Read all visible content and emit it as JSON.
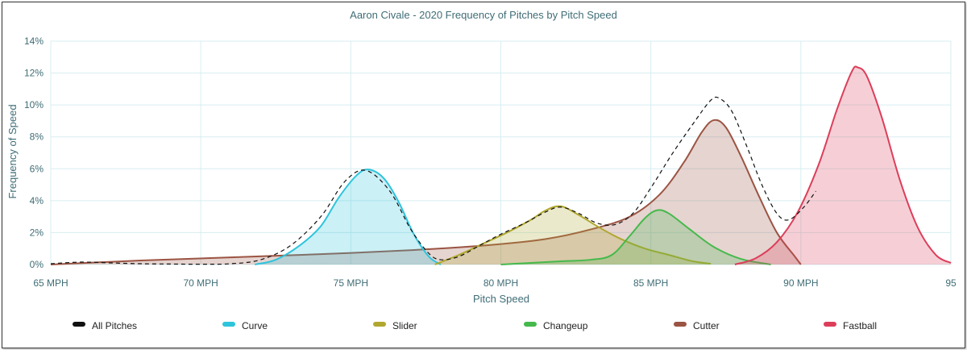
{
  "chart_data": {
    "type": "area",
    "title": "Aaron Civale - 2020 Frequency of Pitches by Pitch Speed",
    "xlabel": "Pitch Speed",
    "ylabel": "Frequency of Speed",
    "xlim": [
      65,
      95
    ],
    "ylim": [
      0,
      14
    ],
    "x_ticks": [
      {
        "value": 65,
        "label": "65 MPH"
      },
      {
        "value": 70,
        "label": "70 MPH"
      },
      {
        "value": 75,
        "label": "75 MPH"
      },
      {
        "value": 80,
        "label": "80 MPH"
      },
      {
        "value": 85,
        "label": "85 MPH"
      },
      {
        "value": 90,
        "label": "90 MPH"
      },
      {
        "value": 95,
        "label": "95"
      }
    ],
    "y_ticks": [
      {
        "value": 0,
        "label": "0%"
      },
      {
        "value": 2,
        "label": "2%"
      },
      {
        "value": 4,
        "label": "4%"
      },
      {
        "value": 6,
        "label": "6%"
      },
      {
        "value": 8,
        "label": "8%"
      },
      {
        "value": 10,
        "label": "10%"
      },
      {
        "value": 12,
        "label": "12%"
      },
      {
        "value": 14,
        "label": "14%"
      }
    ],
    "grid": true,
    "legend_position": "bottom",
    "series": [
      {
        "name": "All Pitches",
        "color": "#111111",
        "style": "dashed",
        "fill": false,
        "points": [
          [
            65,
            0.05
          ],
          [
            66,
            0.15
          ],
          [
            67,
            0.1
          ],
          [
            68,
            0.05
          ],
          [
            69,
            0.03
          ],
          [
            70,
            0.02
          ],
          [
            71,
            0.05
          ],
          [
            72,
            0.3
          ],
          [
            73,
            1.2
          ],
          [
            74,
            3.0
          ],
          [
            74.8,
            5.2
          ],
          [
            75.5,
            5.9
          ],
          [
            76.3,
            4.6
          ],
          [
            77,
            2.2
          ],
          [
            77.6,
            0.7
          ],
          [
            78,
            0.3
          ],
          [
            78.6,
            0.5
          ],
          [
            79.3,
            1.2
          ],
          [
            80,
            1.9
          ],
          [
            80.8,
            2.6
          ],
          [
            81.5,
            3.3
          ],
          [
            82,
            3.6
          ],
          [
            82.6,
            3.2
          ],
          [
            83.2,
            2.6
          ],
          [
            83.8,
            2.5
          ],
          [
            84.4,
            3.2
          ],
          [
            85.0,
            4.8
          ],
          [
            85.7,
            6.9
          ],
          [
            86.4,
            8.8
          ],
          [
            87.0,
            10.3
          ],
          [
            87.3,
            10.4
          ],
          [
            87.7,
            9.6
          ],
          [
            88.2,
            7.4
          ],
          [
            88.7,
            5.0
          ],
          [
            89.2,
            3.2
          ],
          [
            89.6,
            2.8
          ],
          [
            90.1,
            3.6
          ],
          [
            90.5,
            4.6
          ]
        ]
      },
      {
        "name": "Curve",
        "color": "#2ec4dc",
        "fill": true,
        "points": [
          [
            71.8,
            0
          ],
          [
            72.5,
            0.3
          ],
          [
            73.3,
            1.2
          ],
          [
            74,
            2.4
          ],
          [
            74.6,
            4.2
          ],
          [
            75.2,
            5.6
          ],
          [
            75.6,
            5.95
          ],
          [
            76.1,
            5.4
          ],
          [
            76.6,
            3.9
          ],
          [
            77.1,
            1.9
          ],
          [
            77.6,
            0.5
          ],
          [
            78,
            0
          ]
        ]
      },
      {
        "name": "Slider",
        "color": "#b0a72e",
        "fill": true,
        "points": [
          [
            77.8,
            0
          ],
          [
            78.6,
            0.6
          ],
          [
            79.4,
            1.3
          ],
          [
            80.2,
            2.0
          ],
          [
            81.0,
            2.8
          ],
          [
            81.5,
            3.4
          ],
          [
            82.0,
            3.65
          ],
          [
            82.6,
            3.1
          ],
          [
            83.3,
            2.3
          ],
          [
            84.0,
            1.6
          ],
          [
            84.8,
            1.0
          ],
          [
            85.6,
            0.6
          ],
          [
            86.4,
            0.2
          ],
          [
            87.0,
            0.05
          ]
        ]
      },
      {
        "name": "Changeup",
        "color": "#45b94c",
        "fill": true,
        "points": [
          [
            80,
            0
          ],
          [
            81,
            0.1
          ],
          [
            82,
            0.2
          ],
          [
            83,
            0.3
          ],
          [
            83.7,
            0.6
          ],
          [
            84.3,
            1.8
          ],
          [
            84.8,
            2.9
          ],
          [
            85.2,
            3.4
          ],
          [
            85.6,
            3.2
          ],
          [
            86.3,
            2.2
          ],
          [
            87.1,
            1.1
          ],
          [
            88,
            0.35
          ],
          [
            89,
            0
          ]
        ]
      },
      {
        "name": "Cutter",
        "color": "#9b5443",
        "fill": true,
        "points": [
          [
            65,
            0
          ],
          [
            68,
            0.25
          ],
          [
            71,
            0.45
          ],
          [
            74,
            0.65
          ],
          [
            77,
            0.9
          ],
          [
            79.5,
            1.2
          ],
          [
            81.5,
            1.6
          ],
          [
            83,
            2.2
          ],
          [
            84.3,
            3.0
          ],
          [
            85.3,
            4.4
          ],
          [
            86.1,
            6.4
          ],
          [
            86.7,
            8.3
          ],
          [
            87.1,
            9.05
          ],
          [
            87.5,
            8.6
          ],
          [
            88.0,
            6.8
          ],
          [
            88.6,
            4.3
          ],
          [
            89.2,
            2.0
          ],
          [
            89.8,
            0.5
          ],
          [
            90,
            0
          ]
        ]
      },
      {
        "name": "Fastball",
        "color": "#dc3e5a",
        "fill": true,
        "points": [
          [
            87.8,
            0
          ],
          [
            88.5,
            0.4
          ],
          [
            89.2,
            1.4
          ],
          [
            89.9,
            3.3
          ],
          [
            90.6,
            6.3
          ],
          [
            91.2,
            9.7
          ],
          [
            91.7,
            12.1
          ],
          [
            91.9,
            12.35
          ],
          [
            92.2,
            11.8
          ],
          [
            92.7,
            9.2
          ],
          [
            93.3,
            5.3
          ],
          [
            93.9,
            2.3
          ],
          [
            94.5,
            0.6
          ],
          [
            95,
            0.1
          ]
        ]
      }
    ]
  }
}
